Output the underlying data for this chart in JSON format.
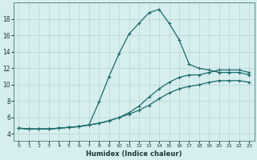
{
  "xlabel": "Humidex (Indice chaleur)",
  "background_color": "#d6eeee",
  "grid_color": "#bcd8d8",
  "line_color": "#1a6b6b",
  "xlim": [
    -0.5,
    23.5
  ],
  "ylim": [
    3.2,
    20.0
  ],
  "xticks": [
    0,
    1,
    2,
    3,
    4,
    5,
    6,
    7,
    8,
    9,
    10,
    11,
    12,
    13,
    14,
    15,
    16,
    17,
    18,
    19,
    20,
    21,
    22,
    23
  ],
  "yticks": [
    4,
    6,
    8,
    10,
    12,
    14,
    16,
    18
  ],
  "line_peaked_x": [
    0,
    1,
    2,
    3,
    4,
    5,
    6,
    7,
    8,
    9,
    10,
    11,
    12,
    13,
    14,
    15,
    16,
    17,
    18,
    19,
    20,
    21,
    22,
    23
  ],
  "line_peaked_y": [
    4.7,
    4.6,
    4.6,
    4.6,
    4.7,
    4.8,
    4.9,
    5.1,
    7.9,
    11.0,
    13.8,
    16.2,
    17.5,
    18.8,
    19.2,
    17.5,
    15.5,
    12.5,
    12.0,
    11.8,
    11.5,
    11.5,
    11.5,
    11.2
  ],
  "line_upper_x": [
    0,
    1,
    2,
    3,
    4,
    5,
    6,
    7,
    8,
    9,
    10,
    11,
    12,
    13,
    14,
    15,
    16,
    17,
    18,
    19,
    20,
    21,
    22,
    23
  ],
  "line_upper_y": [
    4.7,
    4.6,
    4.6,
    4.6,
    4.7,
    4.8,
    4.9,
    5.1,
    5.3,
    5.6,
    6.0,
    6.6,
    7.4,
    8.5,
    9.5,
    10.3,
    10.9,
    11.2,
    11.2,
    11.5,
    11.8,
    11.8,
    11.8,
    11.5
  ],
  "line_lower_x": [
    0,
    1,
    2,
    3,
    4,
    5,
    6,
    7,
    8,
    9,
    10,
    11,
    12,
    13,
    14,
    15,
    16,
    17,
    18,
    19,
    20,
    21,
    22,
    23
  ],
  "line_lower_y": [
    4.7,
    4.6,
    4.6,
    4.6,
    4.7,
    4.8,
    4.9,
    5.1,
    5.3,
    5.6,
    6.0,
    6.4,
    6.9,
    7.5,
    8.3,
    9.0,
    9.5,
    9.8,
    10.0,
    10.3,
    10.5,
    10.5,
    10.5,
    10.3
  ]
}
